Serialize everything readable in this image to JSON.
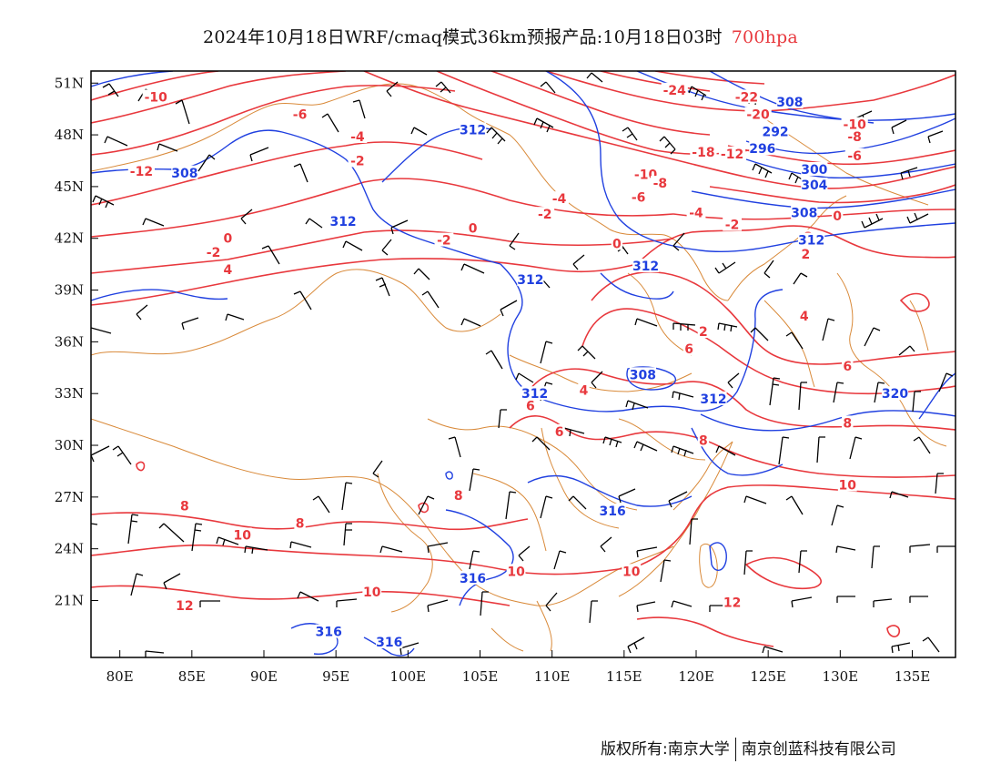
{
  "header": {
    "title": "2024年10月18日WRF/cmaq模式36km预报产品:10月18日03时",
    "level": "700hpa"
  },
  "colors": {
    "temperature": "#e8383d",
    "height": "#2040e0",
    "border": "#d98a3a",
    "wind": "#000000",
    "level": "#e8383d"
  },
  "axes": {
    "lon": {
      "min": 78,
      "max": 138,
      "ticks": [
        "80E",
        "85E",
        "90E",
        "95E",
        "100E",
        "105E",
        "110E",
        "115E",
        "120E",
        "125E",
        "130E",
        "135E"
      ],
      "values": [
        80,
        85,
        90,
        95,
        100,
        105,
        110,
        115,
        120,
        125,
        130,
        135
      ]
    },
    "lat": {
      "min": 17.7,
      "max": 51.7,
      "ticks": [
        "51N",
        "48N",
        "45N",
        "42N",
        "39N",
        "36N",
        "33N",
        "30N",
        "27N",
        "24N",
        "21N"
      ],
      "values": [
        51,
        48,
        45,
        42,
        39,
        36,
        33,
        30,
        27,
        24,
        21
      ]
    }
  },
  "map_data": {
    "temperature_labels": [
      {
        "t": "-10",
        "lon": 82.5,
        "lat": 50.2
      },
      {
        "t": "-6",
        "lon": 92.5,
        "lat": 49.2
      },
      {
        "t": "-4",
        "lon": 96.5,
        "lat": 47.9
      },
      {
        "t": "-2",
        "lon": 96.5,
        "lat": 46.5
      },
      {
        "t": "-12",
        "lon": 81.5,
        "lat": 45.9
      },
      {
        "t": "0",
        "lon": 87.5,
        "lat": 42.0
      },
      {
        "t": "-2",
        "lon": 86.5,
        "lat": 41.2
      },
      {
        "t": "4",
        "lon": 87.5,
        "lat": 40.2
      },
      {
        "t": "-2",
        "lon": 102.5,
        "lat": 41.9
      },
      {
        "t": "0",
        "lon": 104.5,
        "lat": 42.6
      },
      {
        "t": "-2",
        "lon": 109.5,
        "lat": 43.4
      },
      {
        "t": "-4",
        "lon": 110.5,
        "lat": 44.3
      },
      {
        "t": "-24",
        "lon": 118.5,
        "lat": 50.6
      },
      {
        "t": "-22",
        "lon": 123.5,
        "lat": 50.2
      },
      {
        "t": "-20",
        "lon": 124.3,
        "lat": 49.2
      },
      {
        "t": "-10",
        "lon": 116.5,
        "lat": 45.7
      },
      {
        "t": "-8",
        "lon": 117.5,
        "lat": 45.2
      },
      {
        "t": "-6",
        "lon": 116,
        "lat": 44.4
      },
      {
        "t": "-4",
        "lon": 120,
        "lat": 43.5
      },
      {
        "t": "-2",
        "lon": 122.5,
        "lat": 42.8
      },
      {
        "t": "-18",
        "lon": 120.5,
        "lat": 47.0
      },
      {
        "t": "-12",
        "lon": 122.5,
        "lat": 46.9
      },
      {
        "t": "-10",
        "lon": 131,
        "lat": 48.6
      },
      {
        "t": "-8",
        "lon": 131,
        "lat": 47.9
      },
      {
        "t": "-6",
        "lon": 131,
        "lat": 46.8
      },
      {
        "t": "0",
        "lon": 129.8,
        "lat": 43.3
      },
      {
        "t": "2",
        "lon": 127.8,
        "lat": 42.1
      },
      {
        "t": "2",
        "lon": 127.6,
        "lat": 41.1
      },
      {
        "t": "0",
        "lon": 114.5,
        "lat": 41.7
      },
      {
        "t": "2",
        "lon": 120.5,
        "lat": 36.6
      },
      {
        "t": "6",
        "lon": 119.5,
        "lat": 35.6
      },
      {
        "t": "4",
        "lon": 127.5,
        "lat": 37.5
      },
      {
        "t": "6",
        "lon": 130.5,
        "lat": 34.6
      },
      {
        "t": "4",
        "lon": 112.2,
        "lat": 33.2
      },
      {
        "t": "6",
        "lon": 108.5,
        "lat": 32.3
      },
      {
        "t": "6",
        "lon": 110.5,
        "lat": 30.8
      },
      {
        "t": "8",
        "lon": 120.5,
        "lat": 30.3
      },
      {
        "t": "8",
        "lon": 130.5,
        "lat": 31.3
      },
      {
        "t": "10",
        "lon": 130.5,
        "lat": 27.7
      },
      {
        "t": "8",
        "lon": 84.5,
        "lat": 26.5
      },
      {
        "t": "8",
        "lon": 92.5,
        "lat": 25.5
      },
      {
        "t": "10",
        "lon": 88.5,
        "lat": 24.8
      },
      {
        "t": "8",
        "lon": 103.5,
        "lat": 27.1
      },
      {
        "t": "10",
        "lon": 107.5,
        "lat": 22.7
      },
      {
        "t": "10",
        "lon": 97.5,
        "lat": 21.5
      },
      {
        "t": "12",
        "lon": 84.5,
        "lat": 20.7
      },
      {
        "t": "10",
        "lon": 115.5,
        "lat": 22.7
      },
      {
        "t": "12",
        "lon": 122.5,
        "lat": 20.9
      }
    ],
    "height_labels": [
      {
        "t": "312",
        "lon": 104.5,
        "lat": 48.3
      },
      {
        "t": "308",
        "lon": 84.5,
        "lat": 45.8
      },
      {
        "t": "312",
        "lon": 95.5,
        "lat": 43.0
      },
      {
        "t": "308",
        "lon": 126.5,
        "lat": 49.9
      },
      {
        "t": "292",
        "lon": 125.5,
        "lat": 48.2
      },
      {
        "t": "296",
        "lon": 124.6,
        "lat": 47.2
      },
      {
        "t": "300",
        "lon": 128.2,
        "lat": 46.0
      },
      {
        "t": "304",
        "lon": 128.2,
        "lat": 45.1
      },
      {
        "t": "308",
        "lon": 127.5,
        "lat": 43.5
      },
      {
        "t": "312",
        "lon": 128,
        "lat": 41.9
      },
      {
        "t": "312",
        "lon": 108.5,
        "lat": 39.6
      },
      {
        "t": "312",
        "lon": 116.5,
        "lat": 40.4
      },
      {
        "t": "308",
        "lon": 116.3,
        "lat": 34.1
      },
      {
        "t": "312",
        "lon": 108.8,
        "lat": 33.0
      },
      {
        "t": "312",
        "lon": 121.2,
        "lat": 32.7
      },
      {
        "t": "320",
        "lon": 133.8,
        "lat": 33.0
      },
      {
        "t": "316",
        "lon": 114.2,
        "lat": 26.2
      },
      {
        "t": "316",
        "lon": 104.5,
        "lat": 22.3
      },
      {
        "t": "316",
        "lon": 94.5,
        "lat": 19.2
      },
      {
        "t": "316",
        "lon": 98.7,
        "lat": 18.6
      }
    ]
  },
  "footer": {
    "left": "版权所有:南京大学",
    "right": "南京创蓝科技有限公司"
  }
}
